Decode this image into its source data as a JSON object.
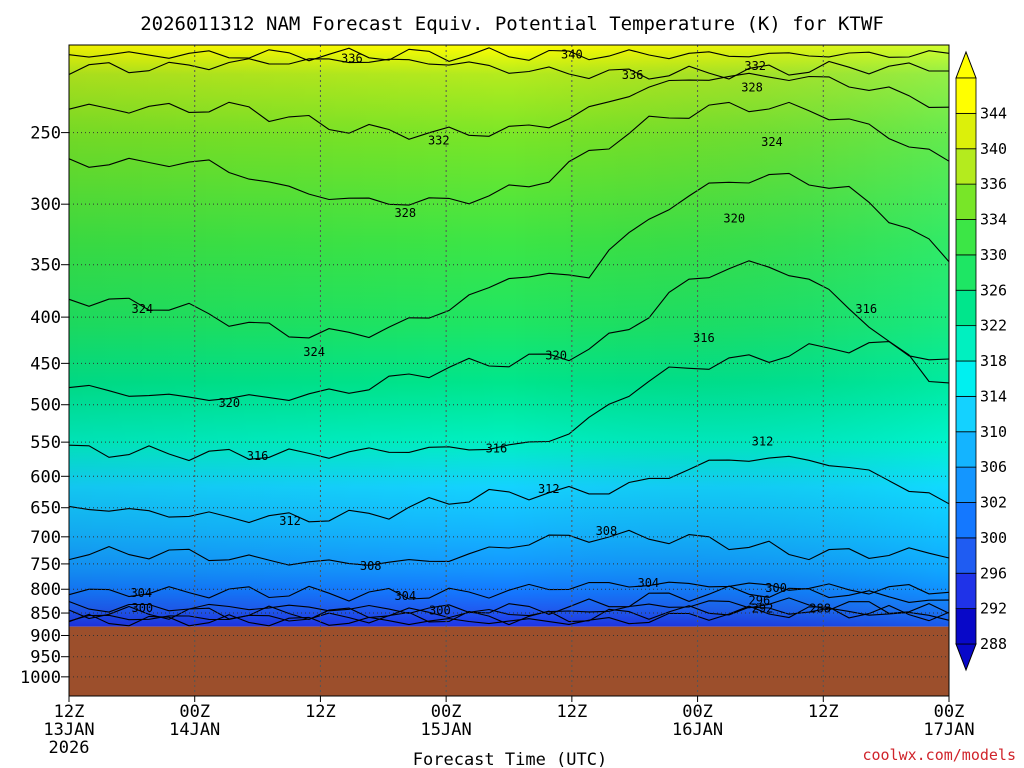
{
  "chart_data": {
    "type": "heatmap",
    "title": "2026011312 NAM Forecast Equiv. Potential Temperature (K) for KTWF",
    "xlabel": "Forecast Time (UTC)",
    "ylabel": "",
    "y_scale": "log-pressure (inverted)",
    "grid": true,
    "x_ticks": [
      {
        "line1": "12Z",
        "line2": "13JAN",
        "line3": "2026"
      },
      {
        "line1": "00Z",
        "line2": "14JAN",
        "line3": ""
      },
      {
        "line1": "12Z",
        "line2": "",
        "line3": ""
      },
      {
        "line1": "00Z",
        "line2": "15JAN",
        "line3": ""
      },
      {
        "line1": "12Z",
        "line2": "",
        "line3": ""
      },
      {
        "line1": "00Z",
        "line2": "16JAN",
        "line3": ""
      },
      {
        "line1": "12Z",
        "line2": "",
        "line3": ""
      },
      {
        "line1": "00Z",
        "line2": "17JAN",
        "line3": ""
      }
    ],
    "x_hours": [
      0,
      12,
      24,
      36,
      48,
      60,
      72,
      84
    ],
    "x_range": [
      0,
      84
    ],
    "y_ticks": [
      250,
      300,
      350,
      400,
      450,
      500,
      550,
      600,
      650,
      700,
      750,
      800,
      850,
      900,
      950,
      1000
    ],
    "y_range": [
      200,
      1050
    ],
    "surface_pressure_hPa": 880,
    "terrain_color": "#9c4f2c",
    "colorbar": {
      "labels": [
        "288",
        "292",
        "296",
        "300",
        "302",
        "306",
        "310",
        "314",
        "318",
        "322",
        "326",
        "330",
        "334",
        "336",
        "340",
        "344"
      ],
      "colors": [
        "#0808c8",
        "#1f33e8",
        "#1f5cf2",
        "#1478ff",
        "#1496ff",
        "#14b4ff",
        "#14d2ff",
        "#00f0f0",
        "#00f0c0",
        "#00e68c",
        "#1ee664",
        "#3ce646",
        "#78e628",
        "#b4eb1e",
        "#dcf00a",
        "#ffff00"
      ]
    },
    "contour_levels": [
      288,
      292,
      296,
      300,
      304,
      308,
      312,
      316,
      320,
      324,
      328,
      332,
      336,
      340
    ],
    "contour_labels": [
      {
        "text": "336",
        "hour": 27,
        "p": 207
      },
      {
        "text": "340",
        "hour": 48.0,
        "p": 205
      },
      {
        "text": "336",
        "hour": 53.8,
        "p": 216
      },
      {
        "text": "332",
        "hour": 65.5,
        "p": 211
      },
      {
        "text": "328",
        "hour": 65.2,
        "p": 223
      },
      {
        "text": "332",
        "hour": 35.3,
        "p": 255
      },
      {
        "text": "324",
        "hour": 67.1,
        "p": 256
      },
      {
        "text": "328",
        "hour": 32.1,
        "p": 307
      },
      {
        "text": "320",
        "hour": 63.5,
        "p": 311
      },
      {
        "text": "324",
        "hour": 7.0,
        "p": 392
      },
      {
        "text": "324",
        "hour": 23.4,
        "p": 437
      },
      {
        "text": "320",
        "hour": 46.5,
        "p": 441
      },
      {
        "text": "316",
        "hour": 60.6,
        "p": 422
      },
      {
        "text": "316",
        "hour": 76.1,
        "p": 392
      },
      {
        "text": "320",
        "hour": 15.3,
        "p": 498
      },
      {
        "text": "316",
        "hour": 18.0,
        "p": 570
      },
      {
        "text": "316",
        "hour": 40.8,
        "p": 559
      },
      {
        "text": "312",
        "hour": 66.2,
        "p": 549
      },
      {
        "text": "312",
        "hour": 45.8,
        "p": 620
      },
      {
        "text": "312",
        "hour": 21.1,
        "p": 672
      },
      {
        "text": "308",
        "hour": 51.3,
        "p": 690
      },
      {
        "text": "308",
        "hour": 28.8,
        "p": 754
      },
      {
        "text": "304",
        "hour": 55.3,
        "p": 787
      },
      {
        "text": "304",
        "hour": 6.9,
        "p": 808
      },
      {
        "text": "304",
        "hour": 32.1,
        "p": 814
      },
      {
        "text": "300",
        "hour": 67.5,
        "p": 797
      },
      {
        "text": "300",
        "hour": 7.0,
        "p": 839
      },
      {
        "text": "300",
        "hour": 35.4,
        "p": 844
      },
      {
        "text": "296",
        "hour": 65.9,
        "p": 823
      },
      {
        "text": "292",
        "hour": 66.2,
        "p": 840
      },
      {
        "text": "288",
        "hour": 71.7,
        "p": 840
      }
    ]
  },
  "credit": "coolwx.com/models"
}
